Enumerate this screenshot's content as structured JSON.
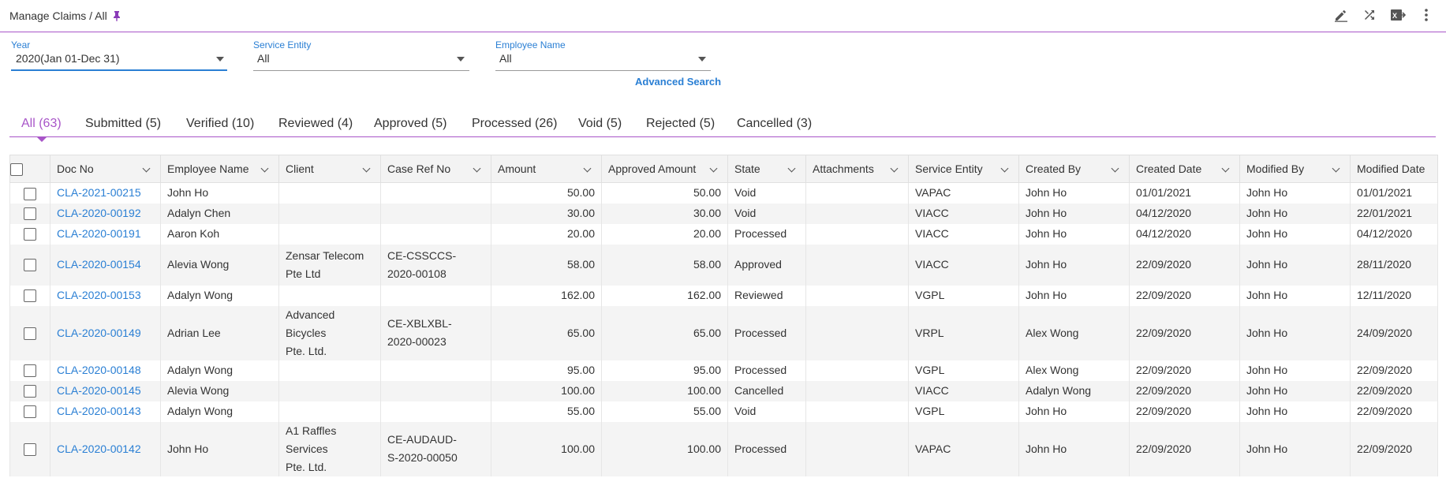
{
  "header": {
    "breadcrumb": "Manage Claims / All",
    "icons": [
      "edit-icon",
      "shuffle-icon",
      "export-icon",
      "more-vert-icon"
    ]
  },
  "filters": {
    "year": {
      "label": "Year",
      "value": "2020(Jan 01-Dec 31)"
    },
    "service_entity": {
      "label": "Service Entity",
      "value": "All"
    },
    "employee_name": {
      "label": "Employee Name",
      "value": "All"
    },
    "advanced_search": "Advanced Search"
  },
  "tabs": [
    {
      "label": "All (63)",
      "active": true
    },
    {
      "label": "Submitted (5)"
    },
    {
      "label": "Verified (10)"
    },
    {
      "label": "Reviewed (4)"
    },
    {
      "label": "Approved (5)"
    },
    {
      "label": "Processed (26)"
    },
    {
      "label": "Void (5)"
    },
    {
      "label": "Rejected (5)"
    },
    {
      "label": "Cancelled (3)"
    }
  ],
  "table": {
    "columns": [
      "Doc No",
      "Employee Name",
      "Client",
      "Case Ref No",
      "Amount",
      "Approved Amount",
      "State",
      "Attachments",
      "Service Entity",
      "Created By",
      "Created Date",
      "Modified By",
      "Modified Date"
    ],
    "rows": [
      {
        "doc": "CLA-2021-00215",
        "employee": "John Ho",
        "client": [
          "",
          ""
        ],
        "case_ref": [
          "",
          ""
        ],
        "amount": "50.00",
        "approved": "50.00",
        "state": "Void",
        "attachments": "",
        "entity": "VAPAC",
        "created_by": "John Ho",
        "created_date": "01/01/2021",
        "modified_by": "John Ho",
        "modified_date": "01/01/2021"
      },
      {
        "doc": "CLA-2020-00192",
        "employee": "Adalyn Chen",
        "client": [
          "",
          ""
        ],
        "case_ref": [
          "",
          ""
        ],
        "amount": "30.00",
        "approved": "30.00",
        "state": "Void",
        "attachments": "",
        "entity": "VIACC",
        "created_by": "John Ho",
        "created_date": "04/12/2020",
        "modified_by": "John Ho",
        "modified_date": "22/01/2021"
      },
      {
        "doc": "CLA-2020-00191",
        "employee": "Aaron Koh",
        "client": [
          "",
          ""
        ],
        "case_ref": [
          "",
          ""
        ],
        "amount": "20.00",
        "approved": "20.00",
        "state": "Processed",
        "attachments": "",
        "entity": "VIACC",
        "created_by": "John Ho",
        "created_date": "04/12/2020",
        "modified_by": "John Ho",
        "modified_date": "04/12/2020"
      },
      {
        "doc": "CLA-2020-00154",
        "employee": "Alevia Wong",
        "client": [
          "Zensar Telecom",
          "Pte Ltd"
        ],
        "case_ref": [
          "CE-CSSCCS-",
          "2020-00108"
        ],
        "amount": "58.00",
        "approved": "58.00",
        "state": "Approved",
        "attachments": "",
        "entity": "VIACC",
        "created_by": "John Ho",
        "created_date": "22/09/2020",
        "modified_by": "John Ho",
        "modified_date": "28/11/2020"
      },
      {
        "doc": "CLA-2020-00153",
        "employee": "Adalyn Wong",
        "client": [
          "",
          ""
        ],
        "case_ref": [
          "",
          ""
        ],
        "amount": "162.00",
        "approved": "162.00",
        "state": "Reviewed",
        "attachments": "",
        "entity": "VGPL",
        "created_by": "John Ho",
        "created_date": "22/09/2020",
        "modified_by": "John Ho",
        "modified_date": "12/11/2020"
      },
      {
        "doc": "CLA-2020-00149",
        "employee": "Adrian Lee",
        "client": [
          "Advanced Bicycles",
          "Pte. Ltd."
        ],
        "case_ref": [
          "CE-XBLXBL-",
          "2020-00023"
        ],
        "amount": "65.00",
        "approved": "65.00",
        "state": "Processed",
        "attachments": "",
        "entity": "VRPL",
        "created_by": "Alex Wong",
        "created_date": "22/09/2020",
        "modified_by": "John Ho",
        "modified_date": "24/09/2020"
      },
      {
        "doc": "CLA-2020-00148",
        "employee": "Adalyn Wong",
        "client": [
          "",
          ""
        ],
        "case_ref": [
          "",
          ""
        ],
        "amount": "95.00",
        "approved": "95.00",
        "state": "Processed",
        "attachments": "",
        "entity": "VGPL",
        "created_by": "Alex Wong",
        "created_date": "22/09/2020",
        "modified_by": "John Ho",
        "modified_date": "22/09/2020"
      },
      {
        "doc": "CLA-2020-00145",
        "employee": "Alevia Wong",
        "client": [
          "",
          ""
        ],
        "case_ref": [
          "",
          ""
        ],
        "amount": "100.00",
        "approved": "100.00",
        "state": "Cancelled",
        "attachments": "",
        "entity": "VIACC",
        "created_by": "Adalyn Wong",
        "created_date": "22/09/2020",
        "modified_by": "John Ho",
        "modified_date": "22/09/2020"
      },
      {
        "doc": "CLA-2020-00143",
        "employee": "Adalyn Wong",
        "client": [
          "",
          ""
        ],
        "case_ref": [
          "",
          ""
        ],
        "amount": "55.00",
        "approved": "55.00",
        "state": "Void",
        "attachments": "",
        "entity": "VGPL",
        "created_by": "John Ho",
        "created_date": "22/09/2020",
        "modified_by": "John Ho",
        "modified_date": "22/09/2020"
      },
      {
        "doc": "CLA-2020-00142",
        "employee": "John Ho",
        "client": [
          "A1 Raffles Services",
          "Pte. Ltd."
        ],
        "case_ref": [
          "CE-AUDAUD-",
          "S-2020-00050"
        ],
        "amount": "100.00",
        "approved": "100.00",
        "state": "Processed",
        "attachments": "",
        "entity": "VAPAC",
        "created_by": "John Ho",
        "created_date": "22/09/2020",
        "modified_by": "John Ho",
        "modified_date": "22/09/2020"
      }
    ]
  },
  "colors": {
    "accent": "#a855c8",
    "link": "#2a7fd4"
  }
}
